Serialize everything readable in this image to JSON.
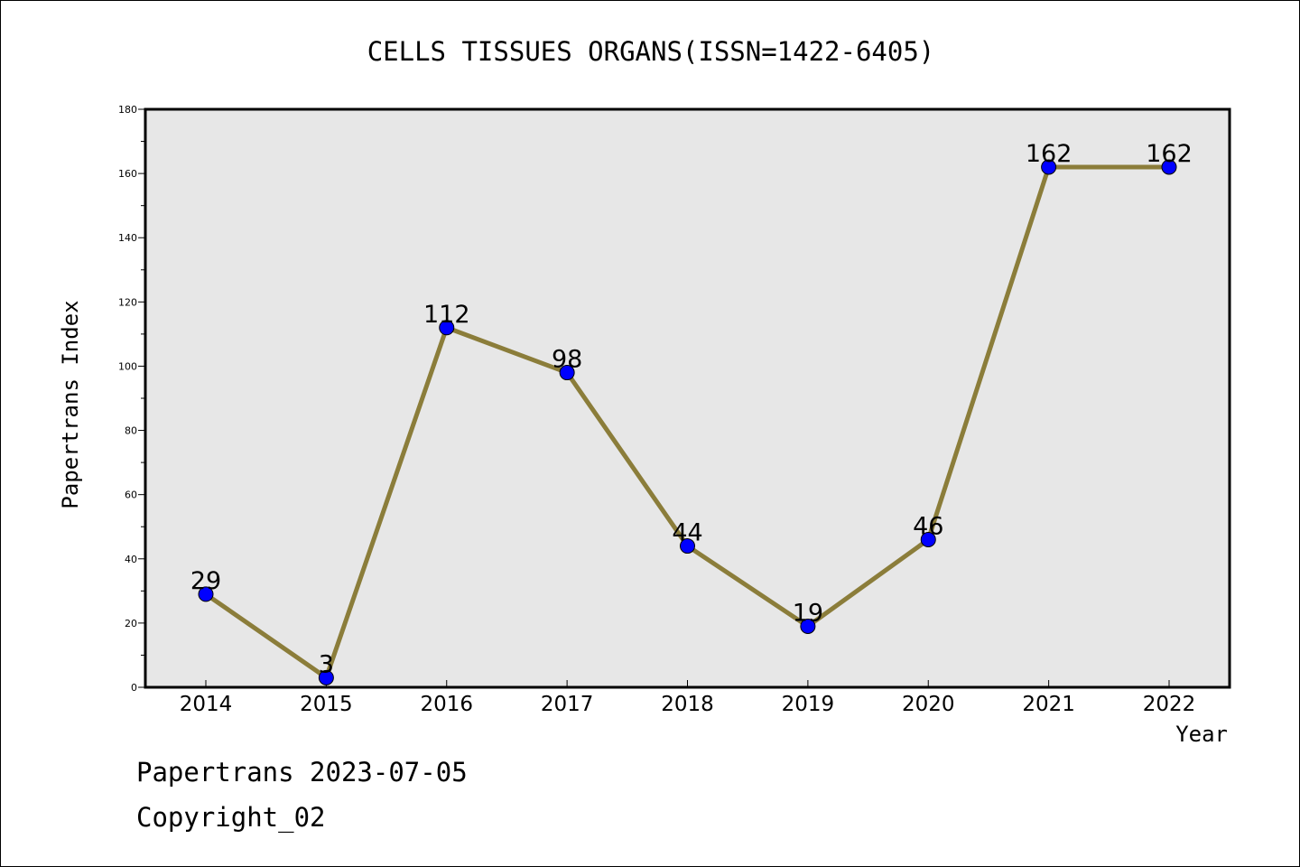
{
  "chart_data": {
    "type": "line",
    "title": "CELLS TISSUES ORGANS(ISSN=1422-6405)",
    "xlabel": "Year",
    "ylabel": "Papertrans Index",
    "categories": [
      "2014",
      "2015",
      "2016",
      "2017",
      "2018",
      "2019",
      "2020",
      "2021",
      "2022"
    ],
    "series": [
      {
        "values": [
          29,
          3,
          112,
          98,
          44,
          19,
          46,
          162,
          162
        ]
      }
    ],
    "ylim": [
      0,
      180
    ],
    "yticks": [
      0,
      20,
      40,
      60,
      80,
      100,
      120,
      140,
      160,
      180
    ],
    "grid": false,
    "line_color": "#8b7d3a",
    "marker_color": "#0000ff",
    "plot_background": "#e7e7e7"
  },
  "footer": {
    "line1": "Papertrans 2023-07-05",
    "line2": "Copyright_02"
  }
}
